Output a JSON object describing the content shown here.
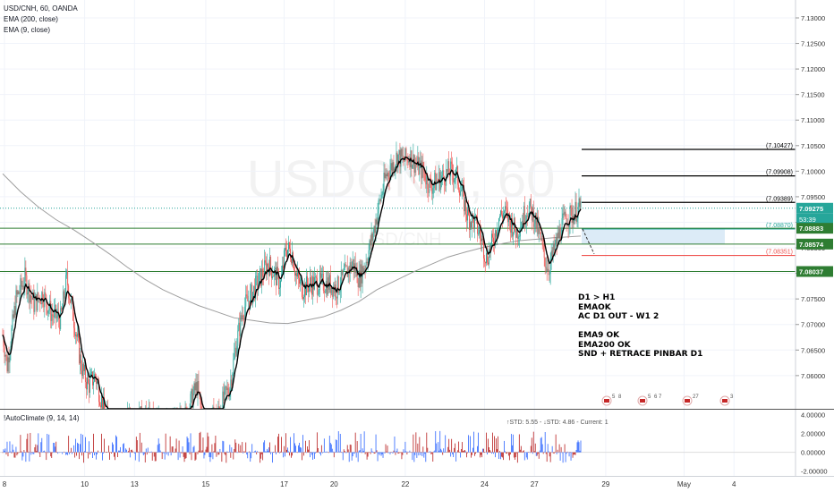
{
  "header": {
    "symbol": "USD/CNH, 60, OANDA",
    "ema200_label": "EMA (200, close)",
    "ema9_label": "EMA (9, close)"
  },
  "watermark": {
    "main": "USDCNH, 60",
    "sub": "USD/CNH"
  },
  "chart_data": {
    "type": "candlestick",
    "ylim": [
      7.0535,
      7.1335
    ],
    "y_ticks": [
      "7.13000",
      "7.12500",
      "7.12000",
      "7.11500",
      "7.11000",
      "7.10500",
      "7.10000",
      "7.09500",
      "7.09000",
      "7.08500",
      "7.08000",
      "7.07500",
      "7.07000",
      "7.06500",
      "7.06000"
    ],
    "y_tick_values": [
      7.13,
      7.125,
      7.12,
      7.115,
      7.11,
      7.105,
      7.1,
      7.095,
      7.09,
      7.085,
      7.08,
      7.075,
      7.07,
      7.065,
      7.06
    ],
    "x_ticks": [
      "8",
      "10",
      "13",
      "15",
      "17",
      "20",
      "22",
      "24",
      "27",
      "29",
      "May",
      "4"
    ],
    "x_tick_index": [
      2,
      92,
      148,
      228,
      316,
      372,
      452,
      541,
      597,
      677,
      765,
      821
    ],
    "bars_plotted": 650,
    "horizontal_levels": [
      {
        "label": "7.10427",
        "value": 7.10427,
        "color": "#000000"
      },
      {
        "label": "7.09908",
        "value": 7.09908,
        "color": "#000000"
      },
      {
        "label": "7.09389",
        "value": 7.09389,
        "color": "#000000"
      },
      {
        "label": "7.08870",
        "value": 7.0887,
        "color": "#26a69a"
      },
      {
        "label": "7.08351",
        "value": 7.08351,
        "color": "#ef5350"
      }
    ],
    "support_lines": [
      {
        "label": "7.08883",
        "value": 7.08883,
        "color": "#2e7d32"
      },
      {
        "label": "7.08574",
        "value": 7.08574,
        "color": "#2e7d32"
      },
      {
        "label": "7.08037",
        "value": 7.08037,
        "color": "#2e7d32"
      }
    ],
    "last_price": {
      "label": "7.09275",
      "value": 7.09275,
      "countdown": "53:39"
    },
    "price_path": [
      [
        0,
        7.068
      ],
      [
        5,
        7.062
      ],
      [
        15,
        7.075
      ],
      [
        25,
        7.079
      ],
      [
        35,
        7.074
      ],
      [
        45,
        7.076
      ],
      [
        55,
        7.072
      ],
      [
        65,
        7.071
      ],
      [
        72,
        7.079
      ],
      [
        80,
        7.071
      ],
      [
        88,
        7.062
      ],
      [
        96,
        7.058
      ],
      [
        104,
        7.06
      ],
      [
        115,
        7.052
      ],
      [
        130,
        7.05
      ],
      [
        150,
        7.052
      ],
      [
        170,
        7.051
      ],
      [
        185,
        7.05
      ],
      [
        205,
        7.052
      ],
      [
        218,
        7.058
      ],
      [
        225,
        7.051
      ],
      [
        240,
        7.052
      ],
      [
        255,
        7.058
      ],
      [
        262,
        7.066
      ],
      [
        270,
        7.073
      ],
      [
        280,
        7.076
      ],
      [
        292,
        7.08
      ],
      [
        298,
        7.082
      ],
      [
        305,
        7.08
      ],
      [
        312,
        7.078
      ],
      [
        318,
        7.085
      ],
      [
        325,
        7.084
      ],
      [
        330,
        7.079
      ],
      [
        337,
        7.077
      ],
      [
        345,
        7.078
      ],
      [
        355,
        7.078
      ],
      [
        365,
        7.078
      ],
      [
        375,
        7.077
      ],
      [
        385,
        7.08
      ],
      [
        393,
        7.082
      ],
      [
        400,
        7.079
      ],
      [
        407,
        7.082
      ],
      [
        415,
        7.087
      ],
      [
        422,
        7.093
      ],
      [
        430,
        7.099
      ],
      [
        437,
        7.101
      ],
      [
        443,
        7.103
      ],
      [
        450,
        7.102
      ],
      [
        457,
        7.103
      ],
      [
        465,
        7.101
      ],
      [
        472,
        7.1
      ],
      [
        480,
        7.097
      ],
      [
        487,
        7.098
      ],
      [
        495,
        7.099
      ],
      [
        502,
        7.1
      ],
      [
        510,
        7.099
      ],
      [
        515,
        7.096
      ],
      [
        522,
        7.091
      ],
      [
        530,
        7.09
      ],
      [
        537,
        7.087
      ],
      [
        543,
        7.083
      ],
      [
        550,
        7.086
      ],
      [
        557,
        7.091
      ],
      [
        563,
        7.092
      ],
      [
        570,
        7.09
      ],
      [
        577,
        7.088
      ],
      [
        584,
        7.091
      ],
      [
        590,
        7.093
      ],
      [
        597,
        7.091
      ],
      [
        603,
        7.087
      ],
      [
        608,
        7.083
      ],
      [
        613,
        7.081
      ],
      [
        620,
        7.085
      ],
      [
        627,
        7.089
      ],
      [
        633,
        7.091
      ],
      [
        640,
        7.0915
      ],
      [
        645,
        7.0925
      ],
      [
        649,
        7.09275
      ]
    ],
    "ema200_path": [
      [
        0,
        7.0995
      ],
      [
        20,
        7.096
      ],
      [
        40,
        7.093
      ],
      [
        60,
        7.0905
      ],
      [
        80,
        7.0885
      ],
      [
        100,
        7.0862
      ],
      [
        120,
        7.0838
      ],
      [
        140,
        7.0812
      ],
      [
        160,
        7.0788
      ],
      [
        180,
        7.0768
      ],
      [
        200,
        7.0752
      ],
      [
        220,
        7.0737
      ],
      [
        240,
        7.0725
      ],
      [
        260,
        7.0713
      ],
      [
        280,
        7.0708
      ],
      [
        300,
        7.0703
      ],
      [
        320,
        7.0702
      ],
      [
        340,
        7.0708
      ],
      [
        360,
        7.0715
      ],
      [
        380,
        7.0728
      ],
      [
        400,
        7.0745
      ],
      [
        420,
        7.0768
      ],
      [
        440,
        7.0785
      ],
      [
        460,
        7.0802
      ],
      [
        480,
        7.0817
      ],
      [
        500,
        7.0832
      ],
      [
        520,
        7.0842
      ],
      [
        540,
        7.0851
      ],
      [
        560,
        7.0858
      ],
      [
        580,
        7.0864
      ],
      [
        600,
        7.0867
      ],
      [
        620,
        7.087
      ],
      [
        649,
        7.0873
      ]
    ],
    "indicator": {
      "title": "!AutoClimate (9, 14, 14)",
      "stats": "↑STD: 5.55 - ↓STD: 4.86 - Current: 1",
      "ylim": [
        -2.5,
        4.5
      ],
      "y_ticks": [
        "4.00000",
        "2.00000",
        "0.00000",
        "-2.00000"
      ],
      "y_tick_values": [
        4,
        2,
        0,
        -2
      ]
    }
  },
  "annotations": {
    "notes": [
      "D1 > H1",
      "EMAOK",
      "AC D1 OUT - W1 2",
      "",
      "EMA9 OK",
      "EMA200 OK",
      "SND + RETRACE PINBAR D1"
    ]
  },
  "events": [
    {
      "count": "5",
      "count2": "8"
    },
    {
      "count": "5",
      "count2": "6 7"
    },
    {
      "count": "27",
      "count2": ""
    },
    {
      "count": "3",
      "count2": ""
    }
  ],
  "colors": {
    "up": "#26a69a",
    "down": "#ef5350",
    "ema9": "#000000",
    "ema200": "#9e9e9e",
    "last_price_bg": "#26a69a",
    "support_bg": "#2e7d32",
    "target_zone": "#dcebf7",
    "ind_up": "#2962ff",
    "ind_down": "#b71c1c"
  }
}
